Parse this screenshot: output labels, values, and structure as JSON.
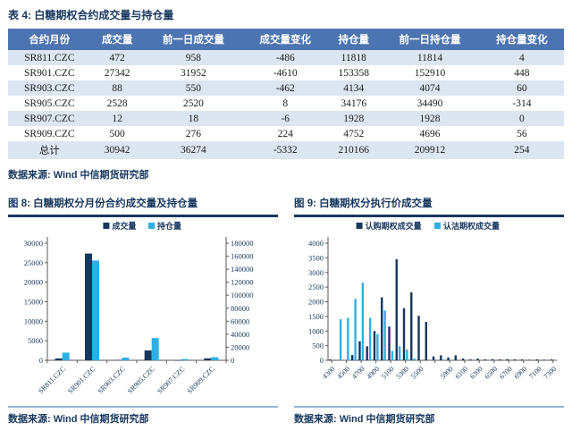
{
  "colors": {
    "navy": "#17375E",
    "light_blue": "#2FB0E4",
    "header_bg": "#4C74B0",
    "band_row": "#DCE6F2",
    "rule_light": "#95B3D7",
    "axis": "#595959"
  },
  "table_section": {
    "title": "表 4: 白糖期权合约成交量与持仓量",
    "columns": [
      "合约月份",
      "成交量",
      "前一日成交量",
      "成交量变化",
      "持仓量",
      "前一日持仓量",
      "持仓量变化"
    ],
    "rows": [
      [
        "SR811.CZC",
        "472",
        "958",
        "-486",
        "11818",
        "11814",
        "4"
      ],
      [
        "SR901.CZC",
        "27342",
        "31952",
        "-4610",
        "153358",
        "152910",
        "448"
      ],
      [
        "SR903.CZC",
        "88",
        "550",
        "-462",
        "4134",
        "4074",
        "60"
      ],
      [
        "SR905.CZC",
        "2528",
        "2520",
        "8",
        "34176",
        "34490",
        "-314"
      ],
      [
        "SR907.CZC",
        "12",
        "18",
        "-6",
        "1928",
        "1928",
        "0"
      ],
      [
        "SR909.CZC",
        "500",
        "276",
        "224",
        "4752",
        "4696",
        "56"
      ],
      [
        "总计",
        "30942",
        "36274",
        "-5332",
        "210166",
        "209912",
        "254"
      ]
    ],
    "source": "数据来源: Wind 中信期货研究部"
  },
  "chart_data": [
    {
      "type": "bar",
      "title": "图 8: 白糖期权分月份合约成交量及持仓量",
      "categories": [
        "SR811.CZC",
        "SR901.CZC",
        "SR903.CZC",
        "SR905.CZC",
        "SR907.CZC",
        "SR909.CZC"
      ],
      "series": [
        {
          "name": "成交量",
          "axis": "left",
          "color_key": "navy",
          "values": [
            472,
            27342,
            88,
            2528,
            12,
            500
          ]
        },
        {
          "name": "持仓量",
          "axis": "right",
          "color_key": "light_blue",
          "values": [
            11818,
            153358,
            4134,
            34176,
            1928,
            4752
          ]
        }
      ],
      "left_axis": {
        "min": 0,
        "max": 30000,
        "step": 5000
      },
      "right_axis": {
        "min": 0,
        "max": 180000,
        "step": 20000
      },
      "legend_position": "top",
      "grid": false,
      "source": "数据来源: Wind 中信期货研究部"
    },
    {
      "type": "bar",
      "title": "图 9: 白糖期权分执行价成交量",
      "categories": [
        4300,
        4400,
        4500,
        4600,
        4700,
        4800,
        4900,
        5000,
        5100,
        5200,
        5300,
        5400,
        5500,
        5600,
        5700,
        5800,
        5900,
        6000,
        6100,
        6200,
        6300,
        6400,
        6500,
        6600,
        6700,
        6800,
        6900,
        7000,
        7100,
        7200,
        7300
      ],
      "xtick_labels": [
        "4300",
        "4500",
        "4700",
        "4900",
        "5100",
        "5300",
        "5500",
        "5900",
        "6100",
        "6300",
        "6500",
        "6700",
        "6900",
        "7100",
        "7300"
      ],
      "xtick_indices": [
        0,
        2,
        4,
        6,
        8,
        10,
        12,
        16,
        18,
        20,
        22,
        24,
        26,
        28,
        30
      ],
      "series": [
        {
          "name": "认购期权成交量",
          "color_key": "navy",
          "values": [
            30,
            0,
            0,
            180,
            650,
            480,
            1000,
            2150,
            1150,
            3450,
            1780,
            2320,
            1520,
            1310,
            130,
            170,
            100,
            170,
            60,
            30,
            60,
            30,
            40,
            30,
            40,
            30,
            30,
            20,
            30,
            20,
            30
          ]
        },
        {
          "name": "认沽期权成交量",
          "color_key": "light_blue",
          "values": [
            0,
            1400,
            1450,
            2100,
            2650,
            1450,
            900,
            1700,
            320,
            480,
            370,
            60,
            0,
            0,
            0,
            0,
            0,
            0,
            0,
            0,
            0,
            0,
            0,
            0,
            0,
            0,
            0,
            0,
            0,
            0,
            0
          ]
        }
      ],
      "y_axis": {
        "min": 0,
        "max": 4000,
        "step": 500
      },
      "legend_position": "top",
      "grid": false,
      "source": "数据来源: Wind 中信期货研究部"
    }
  ]
}
